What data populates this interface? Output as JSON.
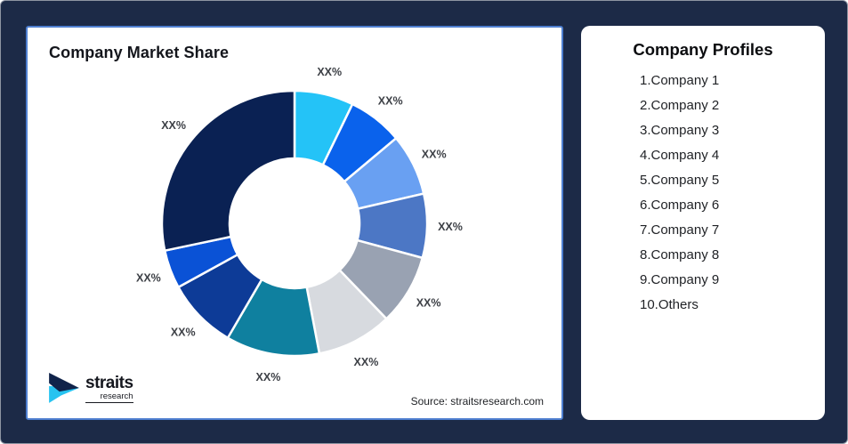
{
  "window": {
    "background_color": "#1C2A47",
    "edge_border_color": "#8E95A3"
  },
  "market_share_card": {
    "title": "Company Market Share",
    "source_note": "Source: straitsresearch.com",
    "border_color": "#4E7FD0"
  },
  "chart_data": {
    "type": "pie",
    "subtype": "donut",
    "title": "Company Market Share",
    "labels_shown_as_placeholder": "XX%",
    "direction": "clockwise",
    "start_angle_deg": 0,
    "hole_ratio": 0.49,
    "label_color": "#3D4046",
    "slices": [
      {
        "label": "XX%",
        "percent_est": 7.2,
        "color": "#24C3F7"
      },
      {
        "label": "XX%",
        "percent_est": 6.7,
        "color": "#0A62EC"
      },
      {
        "label": "XX%",
        "percent_est": 7.5,
        "color": "#69A0F2"
      },
      {
        "label": "XX%",
        "percent_est": 7.8,
        "color": "#4C77C5"
      },
      {
        "label": "XX%",
        "percent_est": 8.6,
        "color": "#99A2B2"
      },
      {
        "label": "XX%",
        "percent_est": 9.2,
        "color": "#D7DADF"
      },
      {
        "label": "XX%",
        "percent_est": 11.4,
        "color": "#0F809F"
      },
      {
        "label": "XX%",
        "percent_est": 8.6,
        "color": "#0D3B97"
      },
      {
        "label": "XX%",
        "percent_est": 4.7,
        "color": "#0A52D6"
      },
      {
        "label": "XX%",
        "percent_est": 28.3,
        "color": "#0A2153"
      }
    ]
  },
  "profiles_card": {
    "title": "Company Profiles",
    "items": [
      "1.Company 1",
      "2.Company 2",
      "3.Company 3",
      "4.Company 4",
      "5.Company 5",
      "6.Company 6",
      "7.Company 7",
      "8.Company 8",
      "9.Company 9",
      "10.Others"
    ]
  },
  "logo": {
    "brand": "straits",
    "sub_brand": "research",
    "mark_dark_color": "#10234A",
    "mark_cyan_color": "#27C3F0"
  }
}
